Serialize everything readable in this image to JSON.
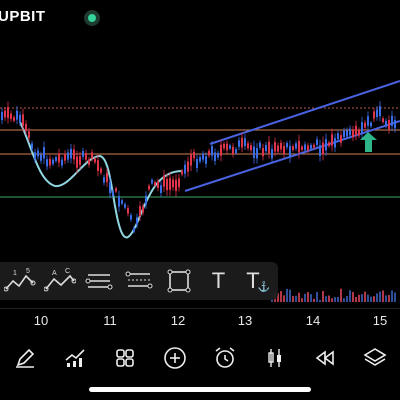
{
  "header": {
    "exchange": "UPBIT",
    "status_color": "#35d39a"
  },
  "chart_data": {
    "type": "candlestick",
    "x_ticks": [
      "10",
      "11",
      "12",
      "13",
      "14",
      "15"
    ],
    "up_color": "#e0344a",
    "down_color": "#3a6ee8"
  },
  "drawing_tools": [
    {
      "name": "wave-1-5-icon",
      "label_a": "1",
      "label_b": "5"
    },
    {
      "name": "wave-a-c-icon",
      "label_a": "A",
      "label_b": "C"
    },
    {
      "name": "parallel-channel-icon"
    },
    {
      "name": "fib-lines-icon"
    },
    {
      "name": "rectangle-icon"
    },
    {
      "name": "text-icon",
      "label": "T"
    },
    {
      "name": "anchored-text-icon",
      "label": "T"
    }
  ],
  "toolbar": [
    "pen-icon",
    "indicators-icon",
    "grid-icon",
    "add-icon",
    "alarm-icon",
    "candle-icon",
    "rewind-icon",
    "layers-icon"
  ]
}
